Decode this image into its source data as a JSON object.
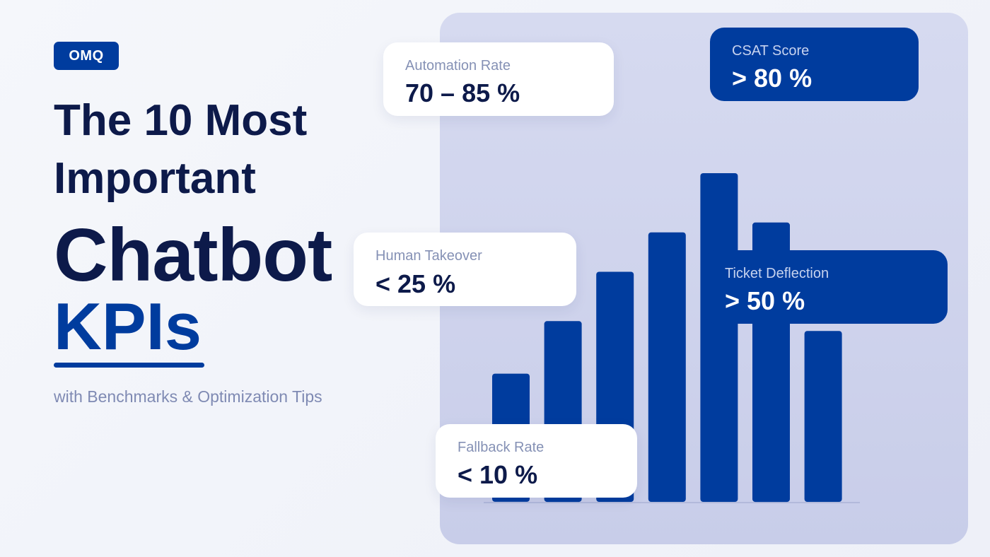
{
  "brand": {
    "label": "OMQ"
  },
  "headline": {
    "line1": "The 10 Most",
    "line2": "Important",
    "line3": "Chatbot",
    "line4": "KPIs"
  },
  "subtitle": "with Benchmarks & Optimization Tips",
  "colors": {
    "primary": "#003c9e",
    "dark_text": "#0d1a4a",
    "muted_text": "#7f8ab3",
    "panel": "#d0d4ee",
    "card": "#ffffff"
  },
  "kpi_cards": {
    "automation_rate": {
      "label": "Automation Rate",
      "value": "70 – 85 %",
      "style": "light"
    },
    "csat_score": {
      "label": "CSAT Score",
      "value": "> 80 %",
      "style": "dark"
    },
    "human_takeover": {
      "label": "Human Takeover",
      "value": "< 25 %",
      "style": "light"
    },
    "ticket_deflection": {
      "label": "Ticket Deflection",
      "value": "> 50 %",
      "style": "dark"
    },
    "fallback_rate": {
      "label": "Fallback Rate",
      "value": "< 10 %",
      "style": "light"
    }
  },
  "chart_data": {
    "type": "bar",
    "values": [
      39,
      55,
      70,
      82,
      100,
      85,
      52
    ],
    "ylim": [
      0,
      100
    ],
    "grid": false,
    "axis_line": true
  }
}
